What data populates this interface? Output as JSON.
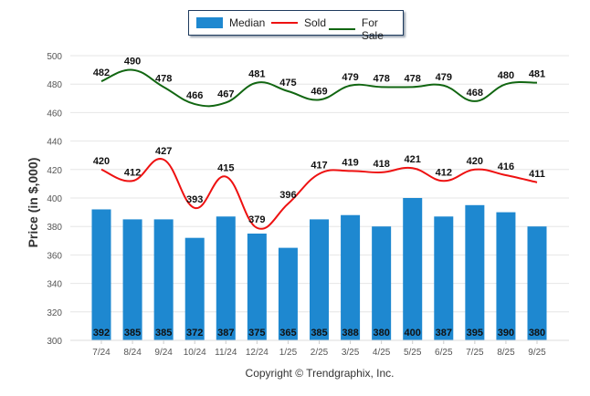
{
  "chart_data": {
    "type": "bar",
    "title": "",
    "xlabel": "",
    "ylabel": "Price (in $,000)",
    "ylim": [
      300,
      500
    ],
    "yticks": [
      300,
      320,
      340,
      360,
      380,
      400,
      420,
      440,
      460,
      480,
      500
    ],
    "grid": true,
    "legend_position": "top-center",
    "categories": [
      "7/24",
      "8/24",
      "9/24",
      "10/24",
      "11/24",
      "12/24",
      "1/25",
      "2/25",
      "3/25",
      "4/25",
      "5/25",
      "6/25",
      "7/25",
      "8/25",
      "9/25"
    ],
    "series": [
      {
        "name": "Median",
        "kind": "bar",
        "color": "#1e88d0",
        "values": [
          392,
          385,
          385,
          372,
          387,
          375,
          365,
          385,
          388,
          380,
          400,
          387,
          395,
          390,
          380
        ]
      },
      {
        "name": "Sold",
        "kind": "line",
        "color": "#ee1111",
        "values": [
          420,
          412,
          427,
          393,
          415,
          379,
          396,
          417,
          419,
          418,
          421,
          412,
          420,
          416,
          411
        ]
      },
      {
        "name": "For Sale",
        "kind": "line",
        "color": "#116611",
        "values": [
          482,
          490,
          478,
          466,
          467,
          481,
          475,
          469,
          479,
          478,
          478,
          479,
          468,
          480,
          481
        ]
      }
    ]
  },
  "legend": {
    "items": [
      {
        "label": "Median",
        "color": "#1e88d0"
      },
      {
        "label": "Sold",
        "color": "#ee1111"
      },
      {
        "label": "For Sale",
        "color": "#116611"
      }
    ]
  },
  "footer": {
    "copyright": "Copyright © Trendgraphix, Inc."
  }
}
